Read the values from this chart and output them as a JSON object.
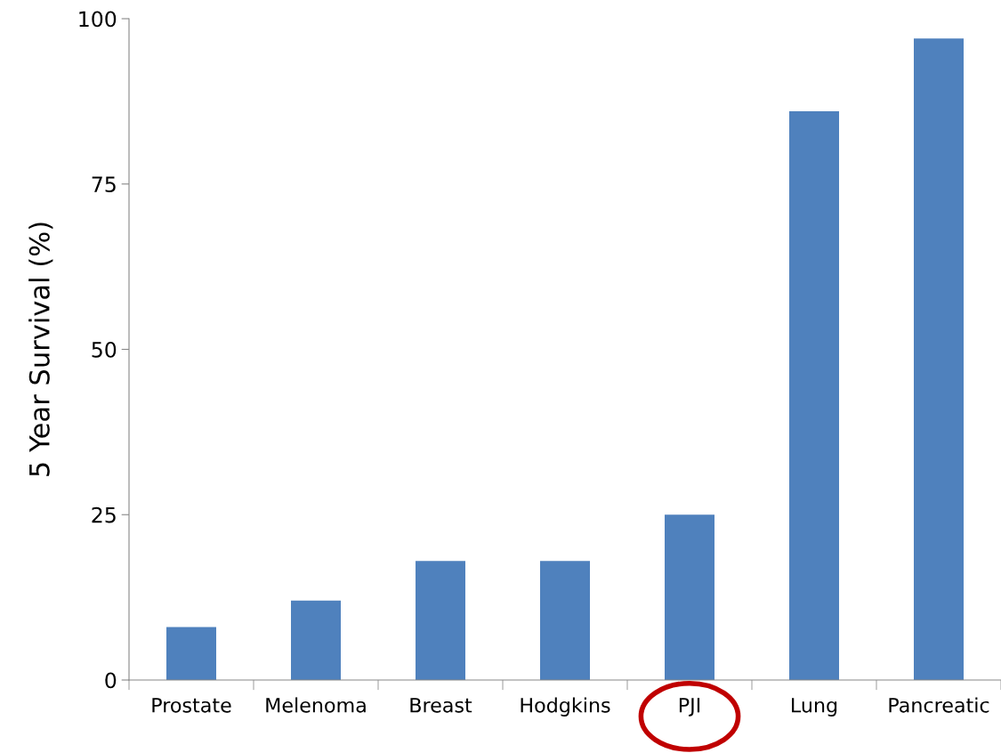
{
  "chart_data": {
    "type": "bar",
    "ylabel": "5 Year Survival (%)",
    "categories": [
      "Prostate",
      "Melenoma",
      "Breast",
      "Hodgkins",
      "PJI",
      "Lung",
      "Pancreatic"
    ],
    "values": [
      8,
      12,
      18,
      18,
      25,
      86,
      97
    ],
    "color": "#4f81bd",
    "ylim": [
      0,
      100
    ],
    "yticks": [
      0,
      25,
      50,
      75,
      100
    ],
    "grid": false,
    "legend": false
  }
}
